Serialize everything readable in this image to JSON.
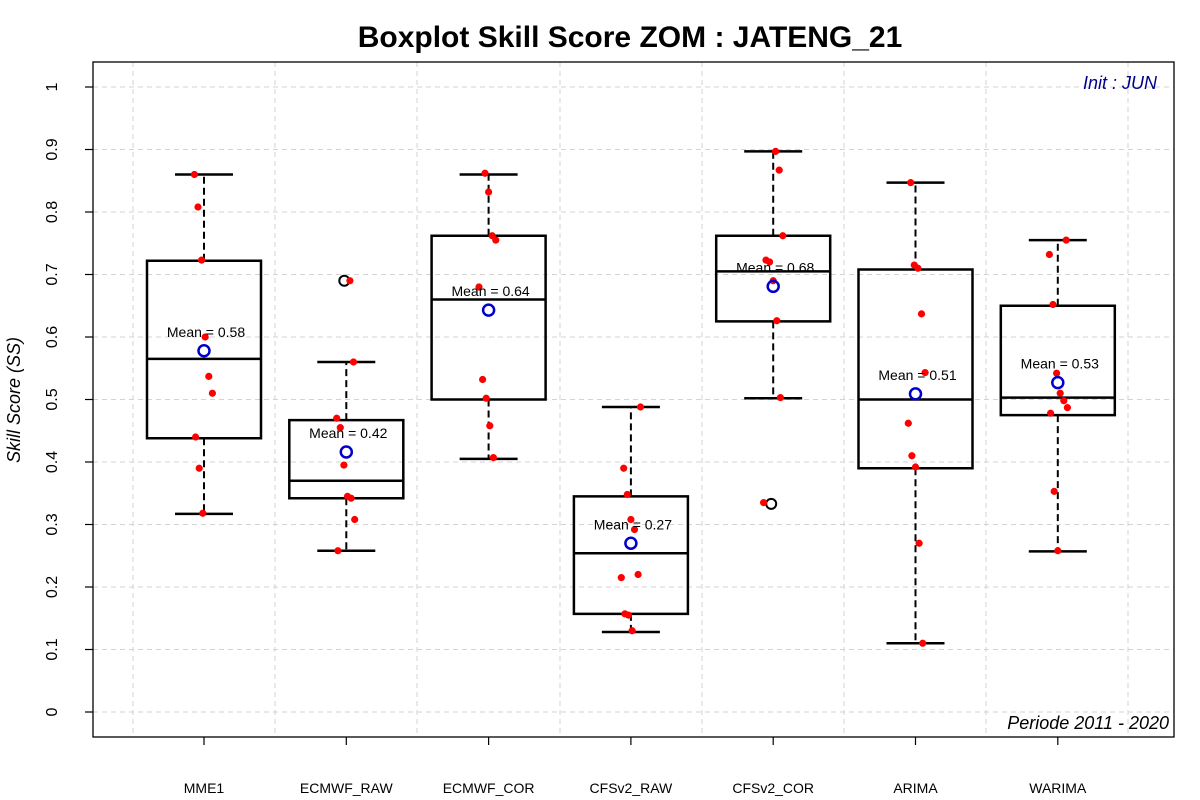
{
  "chart_data": {
    "type": "boxplot",
    "title": "Boxplot Skill Score ZOM : JATENG_21",
    "ylabel": "Skill Score (SS)",
    "xlabel": "",
    "ylim": [
      0,
      1
    ],
    "yticks": [
      "0",
      "0.1",
      "0.2",
      "0.3",
      "0.4",
      "0.5",
      "0.6",
      "0.7",
      "0.8",
      "0.9",
      "1"
    ],
    "grid": true,
    "annotation_top_right": "Init : JUN",
    "annotation_bottom_right": "Periode 2011 - 2020",
    "colors": {
      "points": "#ff0000",
      "mean_marker": "#0000cc",
      "init_text": "#00008b",
      "box": "#000000",
      "grid": "#d3d3d3"
    },
    "categories": [
      "MME1",
      "ECMWF_RAW",
      "ECMWF_COR",
      "CFSv2_RAW",
      "CFSv2_COR",
      "ARIMA",
      "WARIMA"
    ],
    "boxes": [
      {
        "name": "MME1",
        "min": 0.317,
        "q1": 0.438,
        "median": 0.565,
        "q3": 0.722,
        "max": 0.86,
        "mean": 0.578,
        "mean_label": "Mean = 0.58",
        "outliers": [],
        "points": [
          0.86,
          0.808,
          0.723,
          0.6,
          0.537,
          0.51,
          0.44,
          0.39,
          0.318
        ]
      },
      {
        "name": "ECMWF_RAW",
        "min": 0.258,
        "q1": 0.342,
        "median": 0.37,
        "q3": 0.467,
        "max": 0.56,
        "mean": 0.416,
        "mean_label": "Mean = 0.42",
        "outliers": [
          0.69
        ],
        "points": [
          0.69,
          0.56,
          0.47,
          0.455,
          0.395,
          0.345,
          0.342,
          0.308,
          0.258
        ]
      },
      {
        "name": "ECMWF_COR",
        "min": 0.405,
        "q1": 0.5,
        "median": 0.66,
        "q3": 0.762,
        "max": 0.86,
        "mean": 0.643,
        "mean_label": "Mean = 0.64",
        "outliers": [],
        "points": [
          0.862,
          0.832,
          0.762,
          0.755,
          0.68,
          0.532,
          0.502,
          0.458,
          0.407
        ]
      },
      {
        "name": "CFSv2_RAW",
        "min": 0.128,
        "q1": 0.157,
        "median": 0.254,
        "q3": 0.345,
        "max": 0.488,
        "mean": 0.27,
        "mean_label": "Mean = 0.27",
        "outliers": [],
        "points": [
          0.488,
          0.39,
          0.348,
          0.308,
          0.292,
          0.22,
          0.215,
          0.157,
          0.155,
          0.13
        ]
      },
      {
        "name": "CFSv2_COR",
        "min": 0.502,
        "q1": 0.625,
        "median": 0.705,
        "q3": 0.762,
        "max": 0.897,
        "mean": 0.681,
        "mean_label": "Mean = 0.68",
        "outliers": [
          0.333
        ],
        "points": [
          0.897,
          0.867,
          0.762,
          0.723,
          0.72,
          0.69,
          0.626,
          0.503,
          0.335
        ]
      },
      {
        "name": "ARIMA",
        "min": 0.11,
        "q1": 0.39,
        "median": 0.5,
        "q3": 0.708,
        "max": 0.847,
        "mean": 0.509,
        "mean_label": "Mean = 0.51",
        "outliers": [],
        "points": [
          0.847,
          0.715,
          0.71,
          0.637,
          0.543,
          0.462,
          0.41,
          0.392,
          0.27,
          0.11
        ]
      },
      {
        "name": "WARIMA",
        "min": 0.257,
        "q1": 0.475,
        "median": 0.503,
        "q3": 0.65,
        "max": 0.755,
        "mean": 0.527,
        "mean_label": "Mean = 0.53",
        "outliers": [],
        "points": [
          0.755,
          0.732,
          0.652,
          0.542,
          0.51,
          0.498,
          0.487,
          0.478,
          0.353,
          0.258
        ]
      }
    ]
  }
}
